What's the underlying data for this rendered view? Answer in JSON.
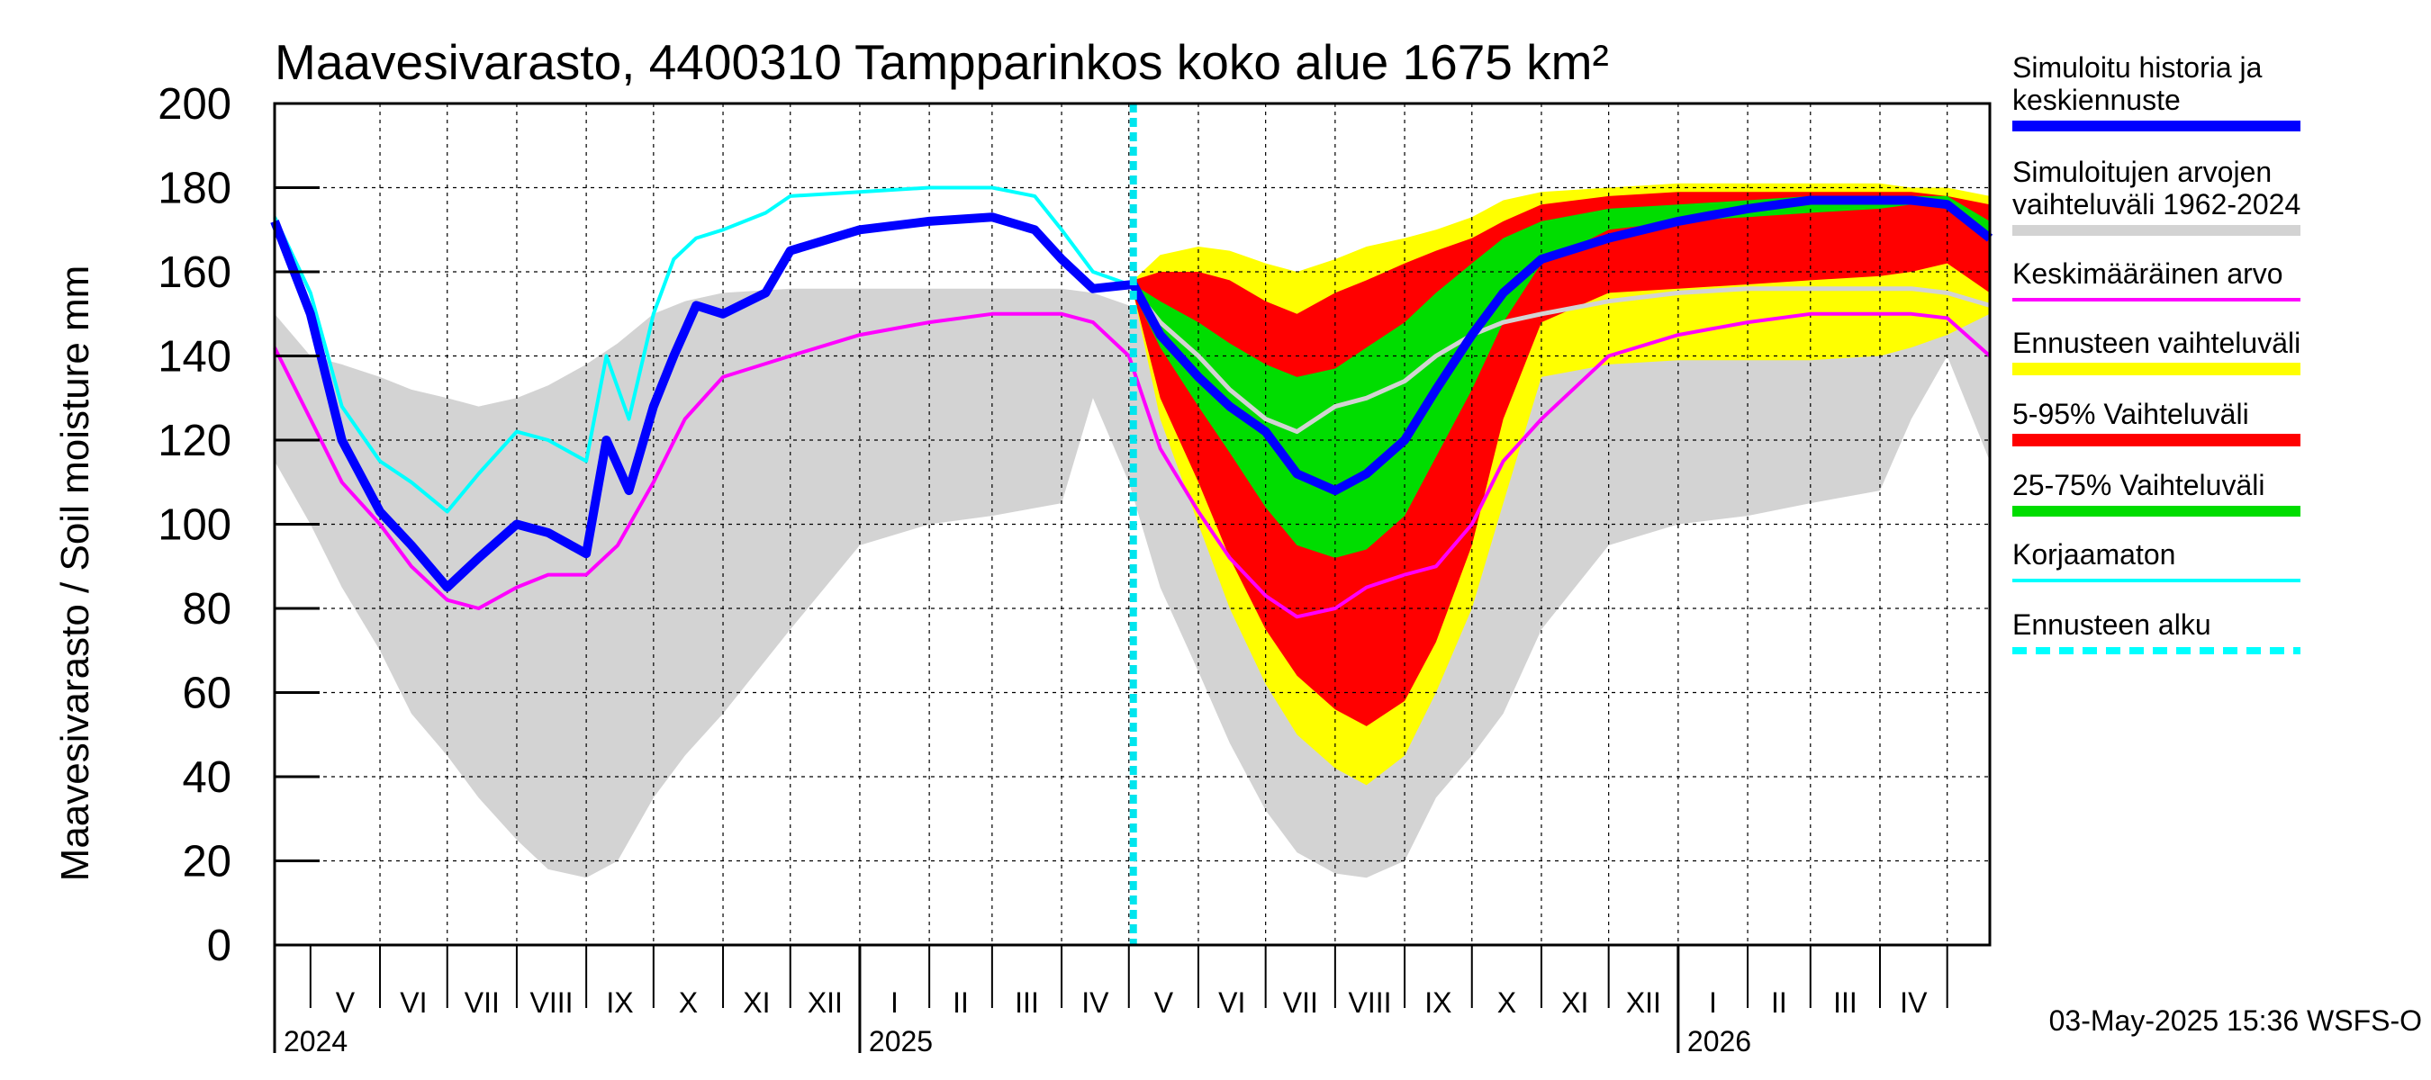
{
  "chart_data": {
    "type": "area",
    "title": "Maavesivarasto, 4400310 Tampparinkos koko alue 1675 km²",
    "ylabel": "Maavesivarasto / Soil moisture   mm",
    "ylim": [
      0,
      200
    ],
    "yticks": [
      "0",
      "20",
      "40",
      "60",
      "80",
      "100",
      "120",
      "140",
      "160",
      "180",
      "200"
    ],
    "x_start": "2024-04-15",
    "x_end": "2026-05-20",
    "forecast_start": "2025-05-03",
    "month_labels": [
      "V",
      "VI",
      "VII",
      "VIII",
      "IX",
      "X",
      "XI",
      "XII",
      "I",
      "II",
      "III",
      "IV",
      "V",
      "VI",
      "VII",
      "VIII",
      "IX",
      "X",
      "XI",
      "XII",
      "I",
      "II",
      "III",
      "IV"
    ],
    "year_labels": [
      "2024",
      "2025",
      "2026"
    ],
    "timestamp": "03-May-2025 15:36 WSFS-O",
    "series": [
      {
        "name": "hist_range",
        "color": "#d3d3d3",
        "x": [
          "2024-04-15",
          "2024-05-01",
          "2024-05-15",
          "2024-06-01",
          "2024-06-15",
          "2024-07-01",
          "2024-07-15",
          "2024-08-01",
          "2024-08-15",
          "2024-09-01",
          "2024-09-15",
          "2024-10-01",
          "2024-10-15",
          "2024-11-01",
          "2024-12-01",
          "2025-01-01",
          "2025-02-01",
          "2025-03-01",
          "2025-04-01",
          "2025-04-15",
          "2025-05-01",
          "2025-05-15",
          "2025-06-01",
          "2025-06-15",
          "2025-07-01",
          "2025-07-15",
          "2025-08-01",
          "2025-08-15",
          "2025-09-01",
          "2025-09-15",
          "2025-10-01",
          "2025-10-15",
          "2025-11-01",
          "2025-12-01",
          "2026-01-01",
          "2026-02-01",
          "2026-03-01",
          "2026-04-01",
          "2026-04-15",
          "2026-05-01",
          "2026-05-20"
        ],
        "lower": [
          115,
          100,
          85,
          70,
          55,
          45,
          35,
          25,
          18,
          16,
          20,
          35,
          45,
          55,
          75,
          95,
          100,
          102,
          105,
          130,
          110,
          85,
          65,
          48,
          32,
          22,
          17,
          16,
          20,
          35,
          45,
          55,
          75,
          95,
          100,
          102,
          105,
          108,
          125,
          140,
          115
        ],
        "upper": [
          150,
          140,
          138,
          135,
          132,
          130,
          128,
          130,
          133,
          138,
          143,
          150,
          153,
          155,
          156,
          156,
          156,
          156,
          156,
          155,
          152,
          148,
          143,
          138,
          132,
          128,
          128,
          130,
          135,
          140,
          147,
          152,
          155,
          156,
          156,
          156,
          156,
          156,
          156,
          156,
          150
        ]
      },
      {
        "name": "forecast_range",
        "color": "#ffff00",
        "x": [
          "2025-05-03",
          "2025-05-15",
          "2025-06-01",
          "2025-06-15",
          "2025-07-01",
          "2025-07-15",
          "2025-08-01",
          "2025-08-15",
          "2025-09-01",
          "2025-09-15",
          "2025-10-01",
          "2025-10-15",
          "2025-11-01",
          "2025-12-01",
          "2026-01-01",
          "2026-02-01",
          "2026-03-01",
          "2026-04-01",
          "2026-04-15",
          "2026-05-01",
          "2026-05-20"
        ],
        "lower": [
          155,
          125,
          100,
          80,
          62,
          50,
          42,
          38,
          45,
          60,
          80,
          105,
          135,
          138,
          139,
          139,
          139,
          140,
          142,
          145,
          150
        ],
        "upper": [
          158,
          164,
          166,
          165,
          162,
          160,
          163,
          166,
          168,
          170,
          173,
          177,
          179,
          180,
          181,
          181,
          181,
          181,
          180,
          180,
          178
        ]
      },
      {
        "name": "p5_95",
        "color": "#ff0000",
        "x": [
          "2025-05-03",
          "2025-05-15",
          "2025-06-01",
          "2025-06-15",
          "2025-07-01",
          "2025-07-15",
          "2025-08-01",
          "2025-08-15",
          "2025-09-01",
          "2025-09-15",
          "2025-10-01",
          "2025-10-15",
          "2025-11-01",
          "2025-12-01",
          "2026-01-01",
          "2026-02-01",
          "2026-03-01",
          "2026-04-01",
          "2026-04-15",
          "2026-05-01",
          "2026-05-20"
        ],
        "lower": [
          155,
          130,
          110,
          92,
          75,
          64,
          56,
          52,
          58,
          72,
          95,
          125,
          148,
          155,
          156,
          157,
          158,
          159,
          160,
          162,
          155
        ],
        "upper": [
          158,
          160,
          160,
          158,
          153,
          150,
          155,
          158,
          162,
          165,
          168,
          172,
          176,
          178,
          179,
          179,
          179,
          179,
          179,
          178,
          176
        ]
      },
      {
        "name": "p25_75",
        "color": "#00dd00",
        "x": [
          "2025-05-03",
          "2025-05-15",
          "2025-06-01",
          "2025-06-15",
          "2025-07-01",
          "2025-07-15",
          "2025-08-01",
          "2025-08-15",
          "2025-09-01",
          "2025-09-15",
          "2025-10-01",
          "2025-10-15",
          "2025-11-01",
          "2025-12-01",
          "2026-01-01",
          "2026-02-01",
          "2026-03-01",
          "2026-04-01",
          "2026-04-15",
          "2026-05-01",
          "2026-05-20"
        ],
        "lower": [
          155,
          142,
          128,
          117,
          104,
          95,
          92,
          94,
          102,
          116,
          132,
          148,
          162,
          170,
          172,
          173,
          174,
          175,
          176,
          175,
          168
        ],
        "upper": [
          157,
          153,
          148,
          143,
          138,
          135,
          137,
          142,
          148,
          155,
          162,
          168,
          172,
          175,
          176,
          177,
          178,
          178,
          178,
          178,
          172
        ]
      },
      {
        "name": "Simuloitu historia ja keskiennuste",
        "color": "#0000ff",
        "x": [
          "2024-04-15",
          "2024-05-01",
          "2024-05-15",
          "2024-06-01",
          "2024-06-15",
          "2024-07-01",
          "2024-07-15",
          "2024-08-01",
          "2024-08-15",
          "2024-09-01",
          "2024-09-10",
          "2024-09-20",
          "2024-10-01",
          "2024-10-10",
          "2024-10-20",
          "2024-11-01",
          "2024-11-20",
          "2024-12-01",
          "2025-01-01",
          "2025-02-01",
          "2025-03-01",
          "2025-03-20",
          "2025-04-01",
          "2025-04-15",
          "2025-05-03",
          "2025-05-15",
          "2025-06-01",
          "2025-06-15",
          "2025-07-01",
          "2025-07-15",
          "2025-08-01",
          "2025-08-15",
          "2025-09-01",
          "2025-09-15",
          "2025-10-01",
          "2025-10-15",
          "2025-11-01",
          "2025-12-01",
          "2026-01-01",
          "2026-02-01",
          "2026-03-01",
          "2026-04-01",
          "2026-04-15",
          "2026-05-01",
          "2026-05-20"
        ],
        "values": [
          172,
          150,
          120,
          103,
          95,
          85,
          92,
          100,
          98,
          93,
          120,
          108,
          128,
          140,
          152,
          150,
          155,
          165,
          170,
          172,
          173,
          170,
          163,
          156,
          157,
          145,
          135,
          128,
          122,
          112,
          108,
          112,
          120,
          132,
          145,
          155,
          163,
          168,
          172,
          175,
          177,
          177,
          177,
          176,
          168
        ]
      },
      {
        "name": "Simuloitujen arvojen vaihteluväli 1962-2024",
        "color": "#d3d3d3",
        "x": [
          "2025-05-03",
          "2025-05-15",
          "2025-06-01",
          "2025-06-15",
          "2025-07-01",
          "2025-07-15",
          "2025-08-01",
          "2025-08-15",
          "2025-09-01",
          "2025-09-15",
          "2025-10-01",
          "2025-10-15",
          "2025-11-01",
          "2025-12-01",
          "2026-01-01",
          "2026-02-01",
          "2026-03-01",
          "2026-04-01",
          "2026-04-15",
          "2026-05-01",
          "2026-05-20"
        ],
        "values": [
          156,
          148,
          140,
          132,
          125,
          122,
          128,
          130,
          134,
          140,
          145,
          148,
          150,
          153,
          155,
          156,
          156,
          156,
          156,
          155,
          152
        ]
      },
      {
        "name": "Keskimääräinen arvo",
        "color": "#ff00ff",
        "x": [
          "2024-04-15",
          "2024-05-01",
          "2024-05-15",
          "2024-06-01",
          "2024-06-15",
          "2024-07-01",
          "2024-07-15",
          "2024-08-01",
          "2024-08-15",
          "2024-09-01",
          "2024-09-15",
          "2024-10-01",
          "2024-10-15",
          "2024-11-01",
          "2024-12-01",
          "2025-01-01",
          "2025-02-01",
          "2025-03-01",
          "2025-04-01",
          "2025-04-15",
          "2025-05-01",
          "2025-05-15",
          "2025-06-01",
          "2025-06-15",
          "2025-07-01",
          "2025-07-15",
          "2025-08-01",
          "2025-08-15",
          "2025-09-01",
          "2025-09-15",
          "2025-10-01",
          "2025-10-15",
          "2025-11-01",
          "2025-12-01",
          "2026-01-01",
          "2026-02-01",
          "2026-03-01",
          "2026-04-01",
          "2026-04-15",
          "2026-05-01",
          "2026-05-20"
        ],
        "values": [
          142,
          125,
          110,
          100,
          90,
          82,
          80,
          85,
          88,
          88,
          95,
          110,
          125,
          135,
          140,
          145,
          148,
          150,
          150,
          148,
          140,
          118,
          103,
          92,
          83,
          78,
          80,
          85,
          88,
          90,
          100,
          115,
          125,
          140,
          145,
          148,
          150,
          150,
          150,
          149,
          140
        ]
      },
      {
        "name": "Korjaamaton",
        "color": "#00ffff",
        "x": [
          "2024-04-15",
          "2024-05-01",
          "2024-05-15",
          "2024-06-01",
          "2024-06-15",
          "2024-07-01",
          "2024-07-15",
          "2024-08-01",
          "2024-08-15",
          "2024-09-01",
          "2024-09-10",
          "2024-09-20",
          "2024-10-01",
          "2024-10-10",
          "2024-10-20",
          "2024-11-01",
          "2024-11-20",
          "2024-12-01",
          "2025-01-01",
          "2025-02-01",
          "2025-03-01",
          "2025-03-20",
          "2025-04-01",
          "2025-04-15",
          "2025-05-01"
        ],
        "values": [
          173,
          155,
          128,
          115,
          110,
          103,
          112,
          122,
          120,
          115,
          140,
          125,
          150,
          163,
          168,
          170,
          174,
          178,
          179,
          180,
          180,
          178,
          170,
          160,
          157
        ]
      }
    ]
  },
  "legend": {
    "items": [
      "Simuloitu historia ja keskiennuste",
      "Simuloitujen arvojen vaihteluväli 1962-2024",
      "Keskimääräinen arvo",
      "Ennusteen vaihteluväli",
      "5-95% Vaihteluväli",
      "25-75% Vaihteluväli",
      "Korjaamaton",
      "Ennusteen alku"
    ],
    "colors": [
      "#0000ff",
      "#d3d3d3",
      "#ff00ff",
      "#ffff00",
      "#ff0000",
      "#00dd00",
      "#00ffff",
      "#00ffff"
    ]
  }
}
